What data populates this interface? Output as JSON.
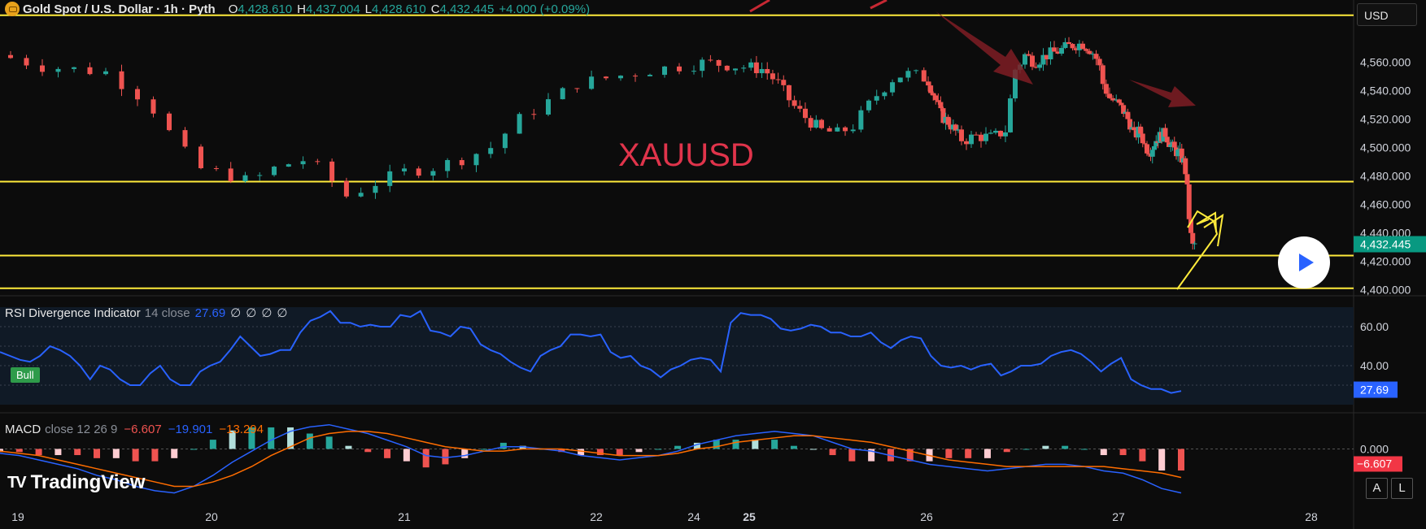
{
  "header": {
    "symbol": "Gold Spot / U.S. Dollar · 1h · Pyth",
    "open_label": "O",
    "open": "4,428.610",
    "high_label": "H",
    "high": "4,437.004",
    "low_label": "L",
    "low": "4,428.610",
    "close_label": "C",
    "close": "4,432.445",
    "change": "+4.000 (+0.09%)"
  },
  "currency": "USD",
  "price_annotation": "XAUUSD",
  "rsi": {
    "name": "RSI Divergence Indicator",
    "params": "14 close",
    "value": "27.69",
    "icons": [
      "∅",
      "∅",
      "∅",
      "∅"
    ],
    "bull_label": "Bull"
  },
  "macd": {
    "name": "MACD",
    "params": "close 12 26 9",
    "v1": "−6.607",
    "v2": "−19.901",
    "v3": "−13.294"
  },
  "logo_text": "TradingView",
  "buttons": {
    "auto": "A",
    "log": "L"
  },
  "colors": {
    "up": "#26a69a",
    "down": "#ef5350",
    "level": "#ffeb3b",
    "rsi": "#2962ff",
    "macd_line": "#2962ff",
    "signal_line": "#ff6d00",
    "accent": "#2962ff"
  },
  "chart_data": [
    {
      "type": "candlestick",
      "title": "Gold Spot / U.S. Dollar · 1h · Pyth",
      "x_tick_labels": [
        "19",
        "20",
        "21",
        "22",
        "24",
        "25",
        "26",
        "27",
        "28"
      ],
      "y_tick_labels": [
        "4,560.000",
        "4,540.000",
        "4,520.000",
        "4,500.000",
        "4,480.000",
        "4,460.000",
        "4,440.000",
        "4,420.000",
        "4,400.000"
      ],
      "ylim": [
        4398,
        4590
      ],
      "last_price_label": "4,432.445",
      "horizontal_levels": [
        4593,
        4476,
        4424,
        4401
      ],
      "close_path": [
        [
          0,
          4565
        ],
        [
          0.2,
          4557
        ],
        [
          0.5,
          4553
        ],
        [
          0.7,
          4532
        ],
        [
          0.85,
          4500
        ],
        [
          0.95,
          4485
        ],
        [
          1.05,
          4482
        ],
        [
          1.2,
          4476
        ],
        [
          1.35,
          4487
        ],
        [
          1.5,
          4492
        ],
        [
          1.6,
          4480
        ],
        [
          1.7,
          4466
        ],
        [
          1.85,
          4475
        ],
        [
          2.0,
          4483
        ],
        [
          2.15,
          4486
        ],
        [
          2.3,
          4492
        ],
        [
          2.45,
          4500
        ],
        [
          2.6,
          4520
        ],
        [
          2.9,
          4545
        ],
        [
          3.3,
          4555
        ],
        [
          3.6,
          4560
        ],
        [
          3.9,
          4557
        ],
        [
          4.2,
          4555
        ],
        [
          4.4,
          4545
        ],
        [
          4.6,
          4530
        ],
        [
          4.8,
          4520
        ],
        [
          5.0,
          4512
        ],
        [
          5.15,
          4510
        ],
        [
          5.3,
          4515
        ],
        [
          5.5,
          4535
        ],
        [
          5.7,
          4550
        ],
        [
          5.85,
          4552
        ],
        [
          6.05,
          4547
        ],
        [
          6.25,
          4535
        ],
        [
          6.45,
          4522
        ],
        [
          6.65,
          4518
        ],
        [
          6.85,
          4512
        ],
        [
          7.05,
          4505
        ],
        [
          7.25,
          4508
        ],
        [
          7.5,
          4507
        ],
        [
          7.7,
          4512
        ],
        [
          7.85,
          4555
        ],
        [
          8.0,
          4565
        ],
        [
          8.2,
          4560
        ],
        [
          8.45,
          4565
        ],
        [
          8.7,
          4568
        ],
        [
          8.95,
          4572
        ],
        [
          9.2,
          4573
        ],
        [
          9.4,
          4568
        ],
        [
          9.55,
          4560
        ],
        [
          9.65,
          4545
        ],
        [
          9.8,
          4535
        ],
        [
          10.0,
          4530
        ],
        [
          10.2,
          4525
        ],
        [
          10.4,
          4517
        ],
        [
          10.55,
          4508
        ],
        [
          10.75,
          4512
        ],
        [
          10.95,
          4500
        ],
        [
          11.15,
          4498
        ],
        [
          11.35,
          4505
        ],
        [
          11.55,
          4508
        ],
        [
          11.75,
          4510
        ],
        [
          11.95,
          4502
        ],
        [
          12.15,
          4498
        ],
        [
          12.35,
          4495
        ],
        [
          12.55,
          4488
        ],
        [
          12.65,
          4470
        ],
        [
          12.75,
          4445
        ],
        [
          12.85,
          4430
        ],
        [
          12.95,
          4432
        ]
      ],
      "annotations": [
        "XAUUSD",
        "arrows"
      ]
    },
    {
      "type": "line",
      "title": "RSI Divergence Indicator 14 close",
      "y_tick_labels": [
        "60.00",
        "40.00"
      ],
      "ylim": [
        20,
        70
      ],
      "series": [
        {
          "name": "RSI",
          "values": [
            47,
            45,
            43,
            42,
            45,
            50,
            48,
            45,
            40,
            33,
            40,
            38,
            33,
            30,
            30,
            36,
            40,
            33,
            30,
            30,
            37,
            40,
            42,
            48,
            55,
            50,
            45,
            46,
            48,
            48,
            57,
            63,
            65,
            68,
            62,
            62,
            60,
            61,
            60,
            60,
            66,
            65,
            68,
            58,
            57,
            55,
            60,
            59,
            51,
            48,
            46,
            42,
            39,
            37,
            45,
            48,
            50,
            56,
            56,
            55,
            56,
            47,
            44,
            45,
            40,
            38,
            34,
            38,
            40,
            43,
            44,
            43,
            37,
            62,
            67,
            66,
            66,
            64,
            59,
            58,
            59,
            61,
            60,
            57,
            57,
            55,
            55,
            57,
            52,
            49,
            53,
            55,
            54,
            45,
            40,
            39,
            40,
            38,
            40,
            41,
            35,
            37,
            40,
            40,
            41,
            45,
            47,
            48,
            46,
            42,
            37,
            41,
            44,
            33,
            30,
            28,
            28,
            26,
            27
          ]
        }
      ],
      "last_value_label": "27.69"
    },
    {
      "type": "line",
      "title": "MACD close 12 26 9",
      "y_tick_labels": [
        "0.000"
      ],
      "ylim": [
        -22,
        12
      ],
      "series": [
        {
          "name": "MACD",
          "values": [
            -2,
            -3,
            -5,
            -7,
            -9,
            -12,
            -14,
            -17,
            -19,
            -20,
            -17,
            -12,
            -6,
            -1,
            4,
            8,
            10,
            11,
            9,
            7,
            4,
            1,
            -3,
            -4,
            -3,
            -1,
            1,
            1,
            0,
            -1,
            -3,
            -4,
            -5,
            -4,
            -3,
            -1,
            2,
            4,
            6,
            7,
            8,
            7,
            6,
            3,
            0,
            -1,
            -3,
            -5,
            -7,
            -8,
            -9,
            -10,
            -9,
            -8,
            -7,
            -7,
            -8,
            -10,
            -11,
            -14,
            -18,
            -20
          ]
        },
        {
          "name": "Signal",
          "values": [
            -1,
            -2,
            -3,
            -5,
            -7,
            -9,
            -11,
            -13,
            -15,
            -17,
            -17,
            -15,
            -12,
            -8,
            -3,
            1,
            5,
            7,
            8,
            8,
            7,
            5,
            3,
            1,
            0,
            -1,
            -1,
            0,
            0,
            0,
            -1,
            -2,
            -3,
            -3,
            -3,
            -2,
            0,
            1,
            3,
            4,
            5,
            6,
            6,
            5,
            4,
            3,
            1,
            -1,
            -3,
            -5,
            -6,
            -7,
            -8,
            -8,
            -8,
            -8,
            -8,
            -8,
            -9,
            -10,
            -11,
            -13
          ]
        }
      ],
      "last_value_label": "−6.607"
    }
  ]
}
